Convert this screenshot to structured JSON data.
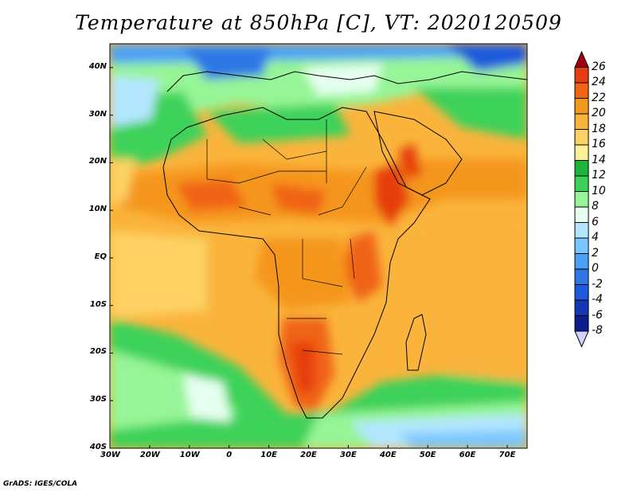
{
  "title": "Temperature at 850hPa [C], VT: 2020120509",
  "footer": "GrADS: IGES/COLA",
  "map": {
    "lon_range": [
      -30,
      75
    ],
    "lat_range": [
      -40,
      45
    ],
    "lon_labels": [
      "30W",
      "20W",
      "10W",
      "0",
      "10E",
      "20E",
      "30E",
      "40E",
      "50E",
      "60E",
      "70E"
    ],
    "lat_labels": [
      "40N",
      "30N",
      "20N",
      "10N",
      "EQ",
      "10S",
      "20S",
      "30S",
      "40S"
    ]
  },
  "colorbar": {
    "labels": [
      "26",
      "24",
      "22",
      "20",
      "18",
      "16",
      "14",
      "12",
      "10",
      "8",
      "6",
      "4",
      "2",
      "0",
      "-2",
      "-4",
      "-6",
      "-8"
    ],
    "colors": [
      "#a0000f",
      "#e63c10",
      "#f06414",
      "#f5961e",
      "#fab43c",
      "#fdd264",
      "#fff096",
      "#1eb43c",
      "#3cd25a",
      "#96f596",
      "#e6fff0",
      "#b4e6ff",
      "#78c8ff",
      "#4ba0f5",
      "#2d78e6",
      "#1e5adc",
      "#1437b4",
      "#0a1e8c",
      "#fdfd96"
    ]
  }
}
